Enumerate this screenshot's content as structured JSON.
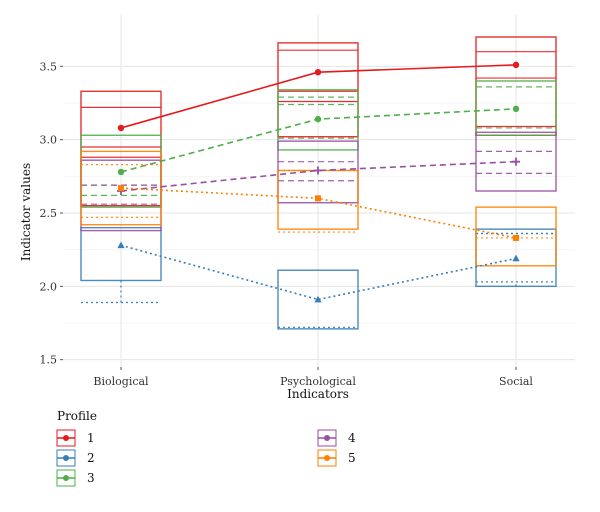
{
  "chart_data": {
    "type": "line",
    "xlabel": "Indicators",
    "ylabel": "Indicator values",
    "categories": [
      "Biological",
      "Psychological",
      "Social"
    ],
    "ylim": [
      1.45,
      3.85
    ],
    "yticks": [
      1.5,
      2.0,
      2.5,
      3.0,
      3.5
    ],
    "ytick_labels": [
      "1.5",
      "2.0",
      "2.5",
      "3.0",
      "3.5"
    ],
    "grid": true,
    "legend_title": "Profile",
    "legend_position": "bottom-left",
    "series": [
      {
        "name": "1",
        "color": "#e41a1c",
        "dash": "solid",
        "marker": "circle",
        "values": [
          3.08,
          3.46,
          3.51
        ],
        "boxes": [
          {
            "low": 2.55,
            "high": 3.33,
            "lines": [
              3.22,
              2.95,
              2.88
            ]
          },
          {
            "low": 3.02,
            "high": 3.66,
            "lines": [
              3.61,
              3.33,
              3.26
            ]
          },
          {
            "low": 3.03,
            "high": 3.7,
            "lines": [
              3.6,
              3.42,
              3.09
            ]
          }
        ]
      },
      {
        "name": "2",
        "color": "#377eb8",
        "dash": "dotted",
        "marker": "triangle",
        "values": [
          2.28,
          1.91,
          2.19
        ],
        "boxes": [
          {
            "low": 2.04,
            "high": 2.4,
            "lines": []
          },
          {
            "low": 1.71,
            "high": 2.11,
            "lines": [
              1.72
            ]
          },
          {
            "low": 2.0,
            "high": 2.39,
            "lines": [
              2.36,
              2.03
            ]
          }
        ],
        "whiskers": [
          {
            "low": 1.89,
            "high": null
          },
          {
            "low": null,
            "high": null
          },
          {
            "low": 2.03,
            "high": 2.36
          }
        ]
      },
      {
        "name": "3",
        "color": "#4daf4a",
        "dash": "dashed",
        "marker": "circle",
        "values": [
          2.78,
          3.14,
          3.21
        ],
        "boxes": [
          {
            "low": 2.54,
            "high": 3.03,
            "lines": [
              2.69,
              2.62
            ]
          },
          {
            "low": 2.93,
            "high": 3.34,
            "lines": [
              3.29,
              3.24,
              3.01
            ]
          },
          {
            "low": 3.03,
            "high": 3.4,
            "lines": [
              3.36,
              3.08
            ]
          }
        ]
      },
      {
        "name": "4",
        "color": "#984ea3",
        "dash": "dashed",
        "marker": "plus",
        "values": [
          2.65,
          2.79,
          2.85
        ],
        "boxes": [
          {
            "low": 2.38,
            "high": 2.86,
            "lines": [
              2.56,
              2.69
            ]
          },
          {
            "low": 2.57,
            "high": 2.99,
            "lines": [
              2.85,
              2.72
            ]
          },
          {
            "low": 2.65,
            "high": 3.05,
            "lines": [
              2.92,
              2.77
            ]
          }
        ]
      },
      {
        "name": "5",
        "color": "#ff7f00",
        "dash": "dotted",
        "marker": "square",
        "values": [
          2.67,
          2.6,
          2.33
        ],
        "boxes": [
          {
            "low": 2.42,
            "high": 2.92,
            "lines": [
              2.83,
              2.47
            ]
          },
          {
            "low": 2.39,
            "high": 2.79,
            "lines": [
              2.37,
              2.79
            ]
          },
          {
            "low": 2.14,
            "high": 2.54,
            "lines": [
              2.33
            ]
          }
        ]
      }
    ]
  }
}
